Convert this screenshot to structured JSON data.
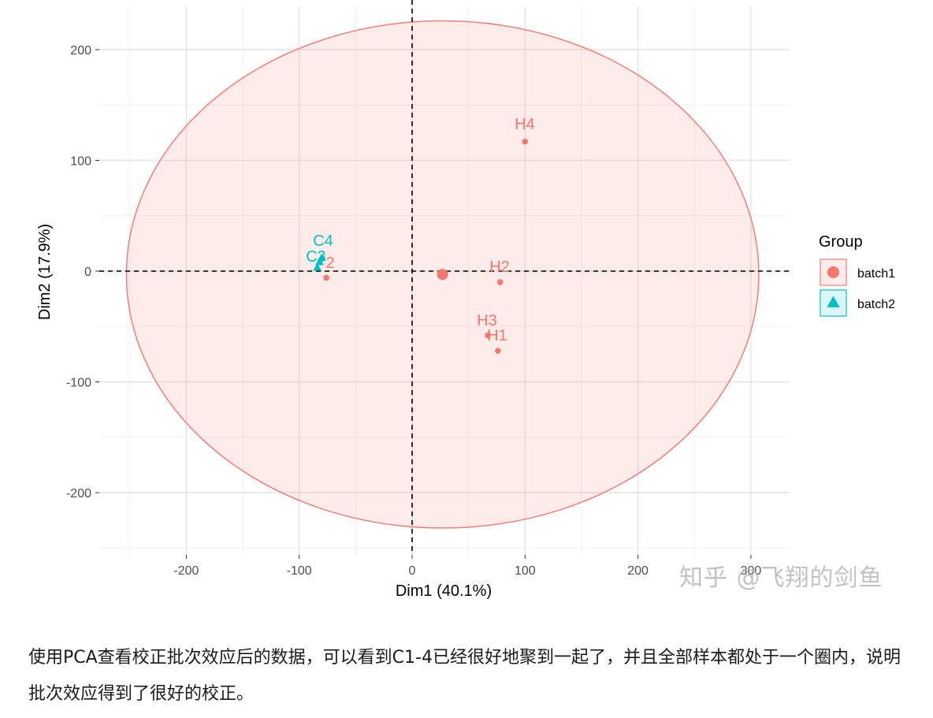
{
  "chart_data": {
    "type": "scatter",
    "xlabel": "Dim1 (40.1%)",
    "ylabel": "Dim2 (17.9%)",
    "xlim": [
      -275,
      335
    ],
    "ylim": [
      -250,
      250
    ],
    "xticks": [
      -200,
      -100,
      0,
      100,
      200,
      300
    ],
    "yticks": [
      -200,
      -100,
      0,
      100,
      200
    ],
    "grid": true,
    "legend": {
      "title": "Group",
      "position": "right",
      "entries": [
        {
          "name": "batch1",
          "color": "#F8766D",
          "shape": "circle"
        },
        {
          "name": "batch2",
          "color": "#00BFC4",
          "shape": "triangle"
        }
      ]
    },
    "reference_lines": {
      "x": 0,
      "y": 0,
      "style": "dashed"
    },
    "ellipse": {
      "group": "batch1",
      "cx": 27,
      "cy": -3,
      "rx": 280,
      "ry": 229
    },
    "series": [
      {
        "name": "batch1",
        "color": "#F8766D",
        "points": [
          {
            "label": "H1",
            "x": 76,
            "y": -72
          },
          {
            "label": "H2",
            "x": 78,
            "y": -10
          },
          {
            "label": "H3",
            "x": 67,
            "y": -58
          },
          {
            "label": "H4",
            "x": 100,
            "y": 117
          },
          {
            "label": "C2",
            "x": -76,
            "y": -6
          }
        ],
        "centroid": {
          "x": 27,
          "y": -3
        }
      },
      {
        "name": "batch2",
        "color": "#00BFC4",
        "points": [
          {
            "label": "C1",
            "x": -84,
            "y": 3
          },
          {
            "label": "C3",
            "x": -82,
            "y": 8
          },
          {
            "label": "C4",
            "x": -80,
            "y": 12
          }
        ]
      }
    ],
    "visible_labels": [
      "H4",
      "H2",
      "H3",
      "H1",
      "C4",
      "C3",
      "2"
    ]
  },
  "watermark": "知乎 @飞翔的剑鱼",
  "caption": "使用PCA查看校正批次效应后的数据，可以看到C1-4已经很好地聚到一起了，并且全部样本都处于一个圈内，说明批次效应得到了很好的校正。"
}
